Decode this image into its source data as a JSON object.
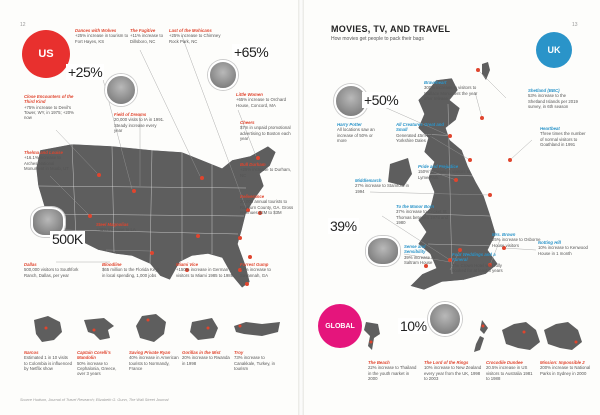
{
  "page_numbers": {
    "left": "12",
    "right": "13"
  },
  "header": {
    "title": "MOVIES, TV, AND TRAVEL",
    "subtitle": "How movies get people to pack their bags"
  },
  "badges": {
    "us": "US",
    "uk": "UK",
    "global": "GLOBAL"
  },
  "colors": {
    "us": "#e8302e",
    "uk": "#2a94c9",
    "global": "#e5157c",
    "map_grey": "#5e5e5e",
    "dot": "#e0452e"
  },
  "big_numbers": {
    "n1": "+25%",
    "n2": "+65%",
    "n3": "500K",
    "n4": "+50%",
    "n5": "39%",
    "n6": "10%"
  },
  "us_items": [
    {
      "title": "Dances with Wolves",
      "body": "+25% increase in tourism to Fort Hayes, KS"
    },
    {
      "title": "The Fugitive",
      "body": "+11% increase to Dillsboro, NC"
    },
    {
      "title": "Last of the Mohicans",
      "body": "+25% increase to Chimney Rock Park, NC"
    },
    {
      "title": "Little Women",
      "body": "+65% increase to Orchard House, Concord, MA"
    },
    {
      "title": "Close Encounters of the Third Kind",
      "body": "+75% increase to Devil's Tower, WY, in 1975; +20% now"
    },
    {
      "title": "Field of Dreams",
      "body": "20,000 visits to IA in 1991. Steady increase every year"
    },
    {
      "title": "Cheers",
      "body": "$7m in unpaid promotional advertising to Boston each year"
    },
    {
      "title": "Thelma and Louise",
      "body": "+16.1% increase to Arches National Monument in Moab, UT"
    },
    {
      "title": "Bull Durham",
      "body": "+25% increase to Durham, NC"
    },
    {
      "title": "Deliverance",
      "body": "20,000 annual tourists to Rayburn County, GA. Gross revenues $2M to $3M"
    },
    {
      "title": "Steel Magnolias",
      "body": "+48% increase to LA"
    },
    {
      "title": "Dallas",
      "body": "500,000 visitors to Southfork Ranch, Dallas, per year"
    },
    {
      "title": "Bloodline",
      "body": "$65 million to the Florida Keys in local spending, 1,000 jobs"
    },
    {
      "title": "Miami Vice",
      "body": "+150% increase in German visitors to Miami 1985 to 1988"
    },
    {
      "title": "Forrest Gump",
      "body": "+7% increase to Savannah, GA"
    }
  ],
  "uk_items": [
    {
      "title": "Braveheart",
      "body": "300% increase in visitors to Wallace Monument the year after release"
    },
    {
      "title": "Shetland (BBC)",
      "body": "53% increase to the Shetland Islands per 2019 survey, in 6th season"
    },
    {
      "title": "Harry Potter",
      "body": "All locations saw an increase of 50% or more"
    },
    {
      "title": "All Creatures Great and Small",
      "body": "Generated £5m for Yorkshire Dales"
    },
    {
      "title": "Heartbeat",
      "body": "Three times the number of normal visitors to Goathland in 1991"
    },
    {
      "title": "Middlemarch",
      "body": "27% increase to Stamford in 1994"
    },
    {
      "title": "Pride and Prejudice",
      "body": "150% increase in visitors to Lyme Park"
    },
    {
      "title": "To the Manor Born",
      "body": "37% increase to Cricket St Thomas between 1978 and 1980"
    },
    {
      "title": "Mrs. Brown",
      "body": "25% increase to Osborne House visitors"
    },
    {
      "title": "Sense and Sensibility",
      "body": "39% increase to Saltram House"
    },
    {
      "title": "Four Weddings and a Funeral",
      "body": "The Crown Hotel was fully booked for at least 3 years"
    },
    {
      "title": "Notting Hill",
      "body": "10% increase to Kenwood House in 1 month"
    }
  ],
  "bottom_left": [
    {
      "title": "Narcos",
      "body": "Estimated 1 in 10 visits to Colombia is influenced by Netflix show"
    },
    {
      "title": "Captain Corelli's Mandolin",
      "body": "50% increase to Cephalonia, Greece, over 3 years"
    },
    {
      "title": "Saving Private Ryan",
      "body": "40% increase in American tourists to Normandy, France"
    },
    {
      "title": "Gorillas in the Mist",
      "body": "20% increase to Rwanda in 1998"
    },
    {
      "title": "Troy",
      "body": "73% increase to Canakkale, Turkey, in tourism"
    }
  ],
  "bottom_right": [
    {
      "title": "The Beach",
      "body": "22% increase to Thailand in the youth market in 2000"
    },
    {
      "title": "The Lord of the Rings",
      "body": "10% increase to New Zealand every year from the UK, 1998 to 2003"
    },
    {
      "title": "Crocodile Dundee",
      "body": "20.5% increase in US visitors to Australia 1981 to 1988"
    },
    {
      "title": "Mission: Impossible 2",
      "body": "200% increase to National Parks in Sydney in 2000"
    }
  ],
  "footer": "Source Hudson, Journal of Travel Research; Elizabeth G. Gunn, The Wall Street Journal"
}
